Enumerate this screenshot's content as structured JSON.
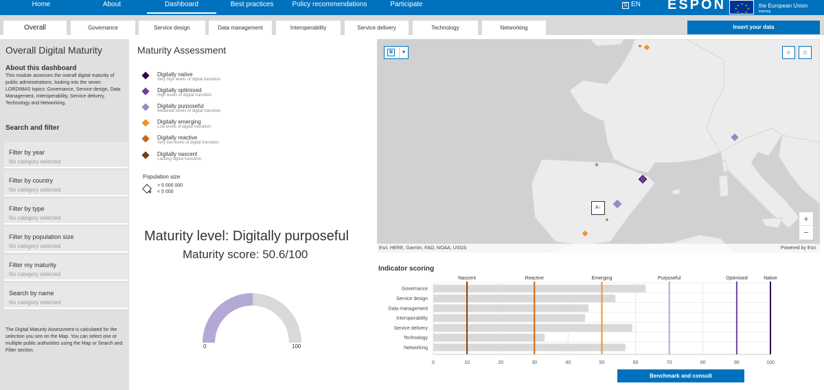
{
  "nav": {
    "items": [
      "Home",
      "About",
      "Dashboard",
      "Best practices",
      "Policy recommendations",
      "Participate"
    ],
    "active": "Dashboard",
    "language": "EN",
    "logo": "ESPON",
    "eu_text": "the European Union",
    "eu_sub": "Interreg"
  },
  "tabs": {
    "items": [
      "Overall",
      "Governance",
      "Service design",
      "Data management",
      "Interoperability",
      "Service delivery",
      "Technology",
      "Networking"
    ],
    "active": "Overall",
    "insert_label": "Insert your data"
  },
  "sidebar": {
    "title": "Overall Digital Maturity",
    "about_heading": "About this dashboard",
    "about_text": "This module assesses the overall digital maturity of public administrations, looking into the seven LORDIMAS topics: Governance, Service design, Data Management, Interoperability, Service delivery, Technology and Networking.",
    "search_heading": "Search and filter",
    "filters": [
      {
        "label": "Filter by year",
        "value": "No category selected"
      },
      {
        "label": "Filter by country",
        "value": "No category selected"
      },
      {
        "label": "Filter by type",
        "value": "No category selected"
      },
      {
        "label": "Filter by population size",
        "value": "No category selected"
      },
      {
        "label": "Filter my maturity",
        "value": "No category selected"
      },
      {
        "label": "Search by name",
        "value": "No category selected"
      }
    ],
    "note": "The Digital Maturity Assessment is calculated for the selection you see on the Map. You can select one or multiple public authorities using the Map or Search and Filter section."
  },
  "legend": {
    "title": "Maturity Assessment",
    "items": [
      {
        "name": "Digitally native",
        "desc": "Very high levels of digital transition",
        "color": "#2d0a4e"
      },
      {
        "name": "Digitally optimised",
        "desc": "High levels of digital transition",
        "color": "#6b3fa0"
      },
      {
        "name": "Digitally purposeful",
        "desc": "Moderate levels of digital transition",
        "color": "#9b87c9"
      },
      {
        "name": "Digitally emerging",
        "desc": "Low levels of digital transition",
        "color": "#f0932b"
      },
      {
        "name": "Digitally reactive",
        "desc": "Very low levels of digital transition",
        "color": "#c8661a"
      },
      {
        "name": "Digitally nascent",
        "desc": "Lacking digital transition",
        "color": "#7a3b10"
      }
    ],
    "population_heading": "Population size",
    "population_large": "> 5 000 000",
    "population_small": "< 5 000"
  },
  "maturity": {
    "level_text": "Maturity level: Digitally purposeful",
    "score_text": "Maturity score: 50.6/100",
    "score": 50.6,
    "gauge_min": "0",
    "gauge_max": "100",
    "fill_color": "#b3a8d6",
    "track_color": "#d9d9d9"
  },
  "map": {
    "attribution": "Esri, HERE, Garmin, FAO, NOAA, USGS",
    "powered_by": "Powered by Esri",
    "zoom_in": "+",
    "zoom_out": "−",
    "locate_label": "A↑"
  },
  "indicator": {
    "title": "Indicator scoring",
    "benchmark_label": "Benchmark and consult"
  },
  "chart_data": {
    "type": "bar",
    "orientation": "horizontal",
    "categories": [
      "Governance",
      "Service design",
      "Data management",
      "Interoperability",
      "Service delivery",
      "Technology",
      "Networking"
    ],
    "values": [
      63,
      54,
      46,
      45,
      59,
      33,
      57
    ],
    "xlim": [
      0,
      100
    ],
    "xticks": [
      0,
      10,
      20,
      30,
      40,
      50,
      60,
      70,
      80,
      90,
      100
    ],
    "thresholds": [
      {
        "name": "Nascent",
        "value": 10,
        "color": "#8b3a0e"
      },
      {
        "name": "Reactive",
        "value": 30,
        "color": "#c8661a"
      },
      {
        "name": "Emerging",
        "value": 50,
        "color": "#f0932b"
      },
      {
        "name": "Purposeful",
        "value": 70,
        "color": "#b3a8d6"
      },
      {
        "name": "Optimised",
        "value": 90,
        "color": "#6b3fa0"
      },
      {
        "name": "Native",
        "value": 100,
        "color": "#2d0a4e"
      }
    ],
    "bar_color": "#d9d9d9",
    "grid": true
  }
}
